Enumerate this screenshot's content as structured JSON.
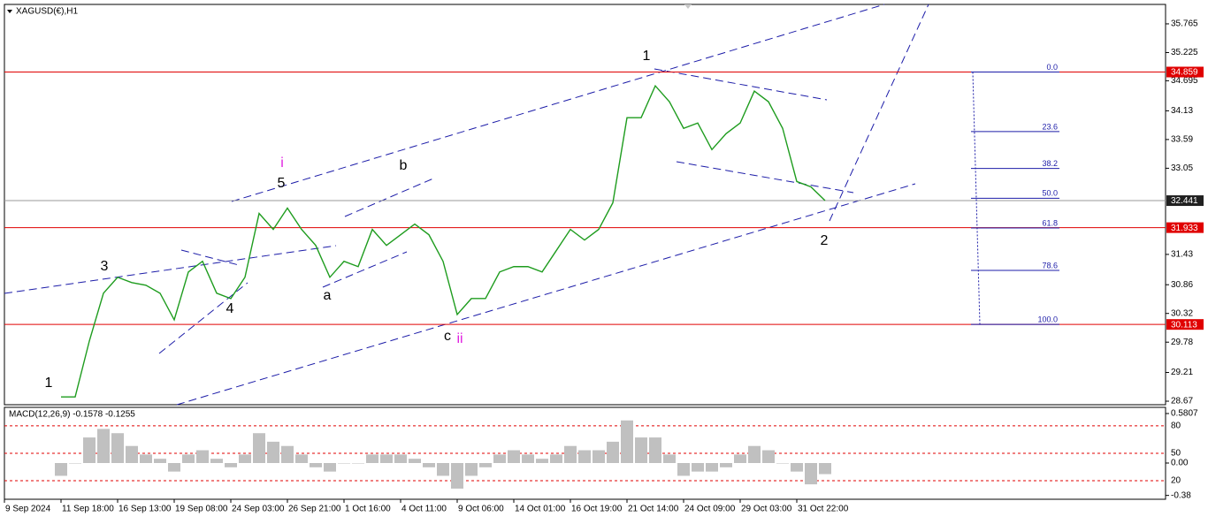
{
  "chart_data": [
    {
      "type": "line",
      "title": "XAGUSD(€),H1",
      "color": "#1e9c1e",
      "categories": [
        "9 Sep 2024",
        null,
        null,
        null,
        "11 Sep 18:00",
        null,
        null,
        null,
        "16 Sep 13:00",
        null,
        null,
        null,
        "19 Sep 08:00",
        null,
        null,
        null,
        "24 Sep 03:00",
        null,
        null,
        null,
        "26 Sep 21:00",
        null,
        null,
        null,
        "1 Oct 16:00",
        null,
        null,
        null,
        "4 Oct 11:00",
        null,
        null,
        null,
        "9 Oct 06:00",
        null,
        null,
        null,
        "14 Oct 01:00",
        null,
        null,
        null,
        "16 Oct 19:00",
        null,
        null,
        null,
        "21 Oct 14:00",
        null,
        null,
        null,
        "24 Oct 09:00",
        null,
        null,
        null,
        "29 Oct 03:00",
        null,
        null,
        null,
        "31 Oct 22:00",
        null,
        null
      ],
      "values": [
        null,
        null,
        null,
        null,
        28.75,
        28.75,
        29.8,
        30.7,
        31.0,
        30.9,
        30.85,
        30.7,
        30.2,
        31.1,
        31.3,
        30.7,
        30.6,
        31.0,
        32.2,
        31.9,
        32.3,
        31.9,
        31.6,
        31.0,
        31.3,
        31.2,
        31.9,
        31.6,
        31.8,
        32.0,
        31.8,
        31.3,
        30.3,
        30.6,
        30.6,
        31.1,
        31.2,
        31.2,
        31.1,
        31.5,
        31.9,
        31.7,
        31.9,
        32.4,
        34.0,
        34.0,
        34.6,
        34.3,
        33.8,
        33.9,
        33.4,
        33.7,
        33.9,
        34.5,
        34.3,
        33.8,
        32.8,
        32.7,
        32.441
      ],
      "ylim": [
        28.604,
        36.13
      ],
      "yticks": [
        35.765,
        35.225,
        34.695,
        34.13,
        33.59,
        33.05,
        31.43,
        30.86,
        30.32,
        29.78,
        29.21,
        28.67
      ],
      "levels": [
        {
          "value": 34.859,
          "color": "#e00000"
        },
        {
          "value": 32.441,
          "color": "#9a9a9a"
        },
        {
          "value": 31.933,
          "color": "#e00000"
        },
        {
          "value": 30.113,
          "color": "#e00000"
        }
      ],
      "fib": {
        "from": 34.859,
        "to": 30.113,
        "color": "#1c1ca8",
        "levels": [
          {
            "value": 0,
            "label": "0.0"
          },
          23.6,
          38.2,
          {
            "value": 50,
            "label": "50.0"
          },
          61.8,
          78.6,
          {
            "value": 100,
            "label": "100.0"
          }
        ]
      },
      "annotations": [
        {
          "text": "1",
          "color": "#000000"
        },
        {
          "text": "3",
          "color": "#000000"
        },
        {
          "text": "4",
          "color": "#000000"
        },
        {
          "text": "5",
          "color": "#000000"
        },
        {
          "text": "i",
          "color": "#e020e0"
        },
        {
          "text": "a",
          "color": "#000000"
        },
        {
          "text": "b",
          "color": "#000000"
        },
        {
          "text": "c",
          "color": "#000000"
        },
        {
          "text": "ii",
          "color": "#e020e0"
        },
        {
          "text": "1",
          "color": "#000000"
        },
        {
          "text": "2",
          "color": "#000000"
        }
      ]
    },
    {
      "type": "bar",
      "title": "MACD(12,26,9) -0.1578 -0.1255",
      "color": "#c0c0c0",
      "values": [
        null,
        null,
        null,
        null,
        -0.15,
        0.0,
        0.3,
        0.4,
        0.35,
        0.2,
        0.1,
        0.05,
        -0.1,
        0.1,
        0.15,
        0.05,
        -0.05,
        0.1,
        0.35,
        0.25,
        0.2,
        0.1,
        -0.05,
        -0.1,
        0.0,
        0.0,
        0.1,
        0.1,
        0.1,
        0.05,
        -0.05,
        -0.15,
        -0.3,
        -0.15,
        -0.05,
        0.1,
        0.15,
        0.1,
        0.05,
        0.1,
        0.2,
        0.15,
        0.15,
        0.25,
        0.5,
        0.3,
        0.3,
        0.1,
        -0.15,
        -0.1,
        -0.1,
        -0.05,
        0.1,
        0.2,
        0.15,
        0.0,
        -0.1,
        -0.25,
        -0.13
      ],
      "ylim": [
        -0.425,
        0.653
      ],
      "yticks": [
        0.5807,
        {
          "value": 0,
          "label": "0.00"
        },
        -0.38
      ],
      "levels": [
        {
          "value": 0.436,
          "label": "80"
        },
        {
          "value": 0.114,
          "label": "50"
        },
        {
          "value": -0.207,
          "label": "20"
        }
      ],
      "level_color": "#e00000"
    }
  ]
}
